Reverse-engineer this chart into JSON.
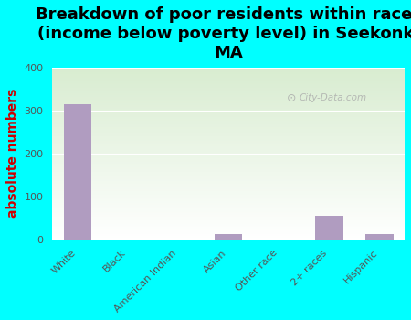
{
  "title": "Breakdown of poor residents within races\n(income below poverty level) in Seekonk,\nMA",
  "categories": [
    "White",
    "Black",
    "American Indian",
    "Asian",
    "Other race",
    "2+ races",
    "Hispanic"
  ],
  "values": [
    315,
    0,
    0,
    13,
    0,
    55,
    13
  ],
  "bar_color": "#b09cc0",
  "ylabel": "absolute numbers",
  "ylim": [
    0,
    400
  ],
  "yticks": [
    0,
    100,
    200,
    300,
    400
  ],
  "background_color": "#00ffff",
  "plot_bg_top": "#d8ecd0",
  "plot_bg_bottom": "#ffffff",
  "watermark": "City-Data.com",
  "title_fontsize": 13,
  "ylabel_fontsize": 10,
  "bar_width": 0.55
}
